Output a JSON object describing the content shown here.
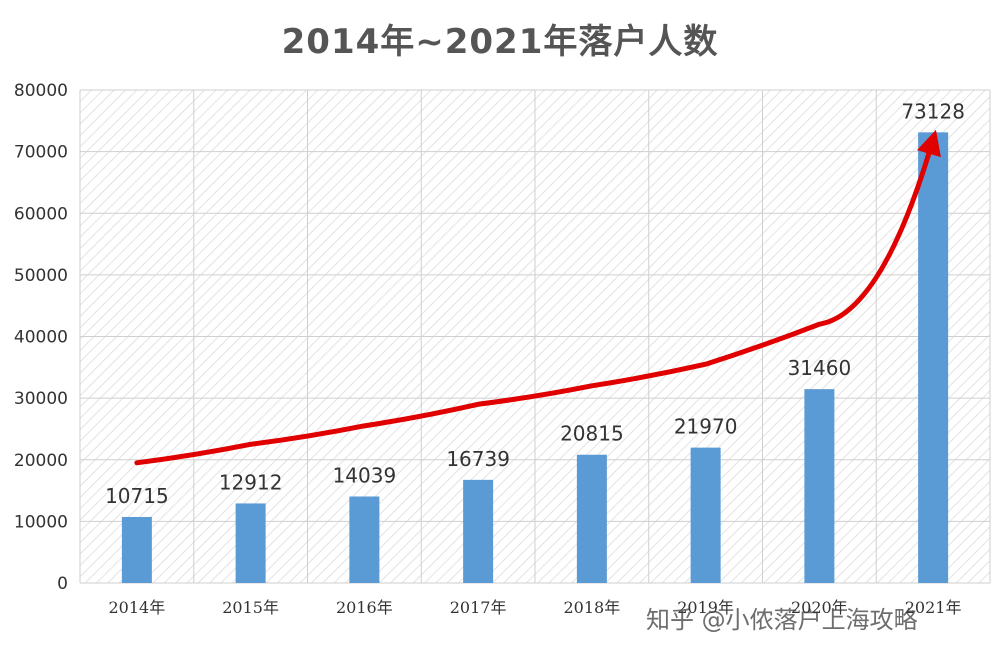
{
  "chart_data": {
    "type": "bar",
    "title": "2014年~2021年落户人数",
    "categories": [
      "2014年",
      "2015年",
      "2016年",
      "2017年",
      "2018年",
      "2019年",
      "2020年",
      "2021年"
    ],
    "values": [
      10715,
      12912,
      14039,
      16739,
      20815,
      21970,
      31460,
      73128
    ],
    "ylim": [
      0,
      80000
    ],
    "yticks": [
      "0",
      "10000",
      "20000",
      "30000",
      "40000",
      "50000",
      "60000",
      "70000",
      "80000"
    ],
    "grid": true,
    "bar_color": "#5B9BD5",
    "trend_arrow_color": "#E00000",
    "trend_arrow_values": [
      19500,
      22500,
      25500,
      29000,
      32000,
      35500,
      42000,
      72000
    ]
  },
  "watermark": "知乎 @小侬落户上海攻略"
}
